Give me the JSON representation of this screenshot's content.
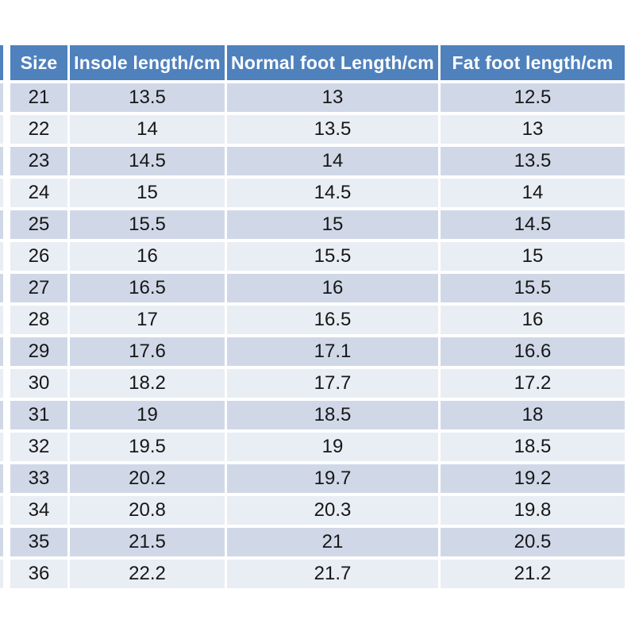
{
  "chart_data": {
    "type": "table",
    "columns": [
      "Size",
      "Insole length/cm",
      "Normal foot Length/cm",
      "Fat foot length/cm"
    ],
    "rows": [
      [
        "21",
        "13.5",
        "13",
        "12.5"
      ],
      [
        "22",
        "14",
        "13.5",
        "13"
      ],
      [
        "23",
        "14.5",
        "14",
        "13.5"
      ],
      [
        "24",
        "15",
        "14.5",
        "14"
      ],
      [
        "25",
        "15.5",
        "15",
        "14.5"
      ],
      [
        "26",
        "16",
        "15.5",
        "15"
      ],
      [
        "27",
        "16.5",
        "16",
        "15.5"
      ],
      [
        "28",
        "17",
        "16.5",
        "16"
      ],
      [
        "29",
        "17.6",
        "17.1",
        "16.6"
      ],
      [
        "30",
        "18.2",
        "17.7",
        "17.2"
      ],
      [
        "31",
        "19",
        "18.5",
        "18"
      ],
      [
        "32",
        "19.5",
        "19",
        "18.5"
      ],
      [
        "33",
        "20.2",
        "19.7",
        "19.2"
      ],
      [
        "34",
        "20.8",
        "20.3",
        "19.8"
      ],
      [
        "35",
        "21.5",
        "21",
        "20.5"
      ],
      [
        "36",
        "22.2",
        "21.7",
        "21.2"
      ]
    ]
  },
  "colors": {
    "header_bg": "#4f81bd",
    "header_text": "#ffffff",
    "row_dark": "#d0d8e8",
    "row_light": "#e9edf4",
    "body_text": "#171717",
    "page_bg": "#ffffff"
  }
}
